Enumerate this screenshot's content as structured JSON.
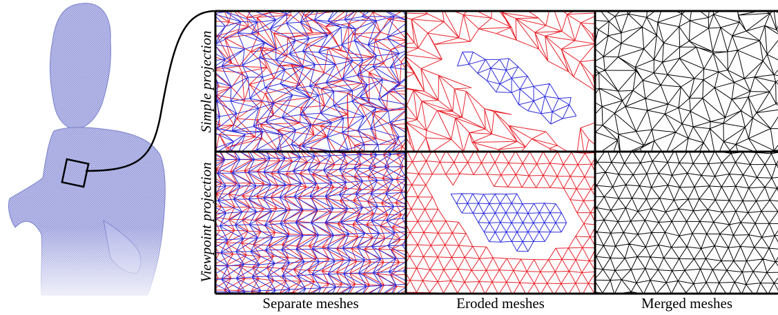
{
  "figure": {
    "columns": [
      {
        "label": "Separate meshes"
      },
      {
        "label": "Eroded meshes"
      },
      {
        "label": "Merged meshes"
      }
    ],
    "rows": [
      {
        "label": "Simple projection"
      },
      {
        "label": "Viewpoint projection"
      }
    ],
    "colors": {
      "mesh_a": "#e8222b",
      "mesh_b": "#2b2bde",
      "merged": "#000000",
      "statue": "#8a8fd6"
    }
  }
}
